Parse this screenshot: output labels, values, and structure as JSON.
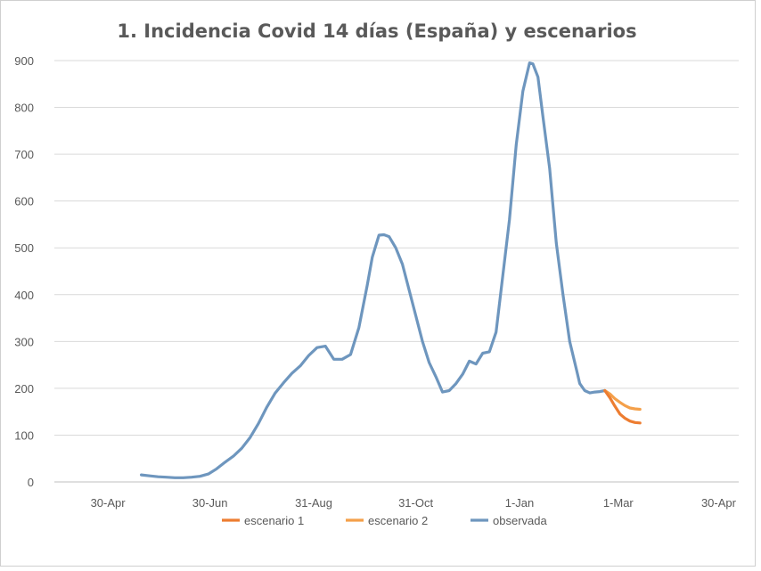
{
  "chart_data": {
    "type": "line",
    "title": "1. Incidencia Covid 14 días (España) y escenarios",
    "xlabel": "",
    "ylabel": "",
    "x_ticks": [
      "30-Apr",
      "30-Jun",
      "31-Aug",
      "31-Oct",
      "1-Jan",
      "1-Mar",
      "30-Apr"
    ],
    "x_tick_days": [
      0,
      61,
      123,
      184,
      246,
      305,
      365
    ],
    "xlim": [
      -32,
      377
    ],
    "ylim": [
      0,
      900
    ],
    "y_ticks": [
      0,
      100,
      200,
      300,
      400,
      500,
      600,
      700,
      800,
      900
    ],
    "grid": true,
    "legend": {
      "position": "bottom"
    },
    "series": [
      {
        "name": "escenario 1",
        "color": "#ED7D31",
        "x": [
          297,
          300,
          303,
          306,
          309,
          312,
          315,
          318
        ],
        "y": [
          195,
          180,
          162,
          145,
          136,
          130,
          127,
          126
        ]
      },
      {
        "name": "escenario 2",
        "color": "#F4A04A",
        "x": [
          297,
          300,
          303,
          306,
          309,
          312,
          315,
          318
        ],
        "y": [
          195,
          188,
          178,
          170,
          163,
          158,
          156,
          155
        ]
      },
      {
        "name": "observada",
        "color": "#6E96BE",
        "x": [
          20,
          25,
          30,
          35,
          40,
          45,
          50,
          55,
          60,
          65,
          70,
          75,
          80,
          85,
          90,
          95,
          100,
          105,
          110,
          115,
          120,
          125,
          130,
          135,
          140,
          145,
          150,
          155,
          158,
          162,
          165,
          168,
          172,
          176,
          180,
          184,
          188,
          192,
          196,
          200,
          204,
          208,
          212,
          216,
          220,
          224,
          228,
          232,
          236,
          240,
          244,
          248,
          252,
          254,
          257,
          260,
          264,
          268,
          272,
          276,
          280,
          282,
          285,
          288,
          291,
          294,
          297
        ],
        "y": [
          15,
          13,
          11,
          10,
          9,
          9,
          10,
          12,
          17,
          28,
          42,
          55,
          72,
          95,
          125,
          160,
          190,
          212,
          232,
          248,
          270,
          287,
          290,
          262,
          262,
          272,
          330,
          420,
          480,
          527,
          528,
          524,
          500,
          465,
          410,
          355,
          300,
          255,
          225,
          192,
          195,
          210,
          230,
          258,
          252,
          275,
          278,
          320,
          440,
          560,
          720,
          835,
          895,
          893,
          865,
          780,
          670,
          510,
          400,
          300,
          240,
          210,
          195,
          190,
          192,
          193,
          195
        ]
      }
    ]
  }
}
